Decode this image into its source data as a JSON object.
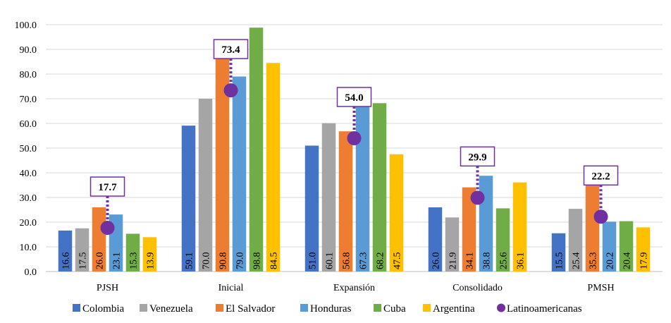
{
  "chart_data": {
    "type": "bar",
    "categories": [
      "PJSH",
      "Inicial",
      "Expansión",
      "Consolidado",
      "PMSH"
    ],
    "series": [
      {
        "name": "Colombia",
        "color": "#4472C4",
        "values": [
          16.6,
          59.1,
          51.0,
          26.0,
          15.5
        ]
      },
      {
        "name": "Venezuela",
        "color": "#A5A5A5",
        "values": [
          17.5,
          70.0,
          60.1,
          21.9,
          25.4
        ]
      },
      {
        "name": "El Salvador",
        "color": "#ED7D31",
        "values": [
          26.0,
          90.8,
          56.8,
          34.1,
          35.3
        ]
      },
      {
        "name": "Honduras",
        "color": "#5B9BD5",
        "values": [
          23.1,
          79.0,
          67.3,
          38.8,
          20.2
        ]
      },
      {
        "name": "Cuba",
        "color": "#70AD47",
        "values": [
          15.3,
          98.8,
          68.2,
          25.6,
          20.4
        ]
      },
      {
        "name": "Argentina",
        "color": "#FFC000",
        "values": [
          13.9,
          84.5,
          47.5,
          36.1,
          17.9
        ]
      }
    ],
    "marker_series": {
      "name": "Latinoamericanas",
      "color": "#7030A0",
      "values": [
        17.7,
        73.4,
        54.0,
        29.9,
        22.2
      ]
    },
    "ylim": [
      0,
      100
    ],
    "yticks": [
      "0.0",
      "10.0",
      "20.0",
      "30.0",
      "40.0",
      "50.0",
      "60.0",
      "70.0",
      "80.0",
      "90.0",
      "100.0"
    ],
    "grid": true,
    "legend_position": "bottom"
  }
}
